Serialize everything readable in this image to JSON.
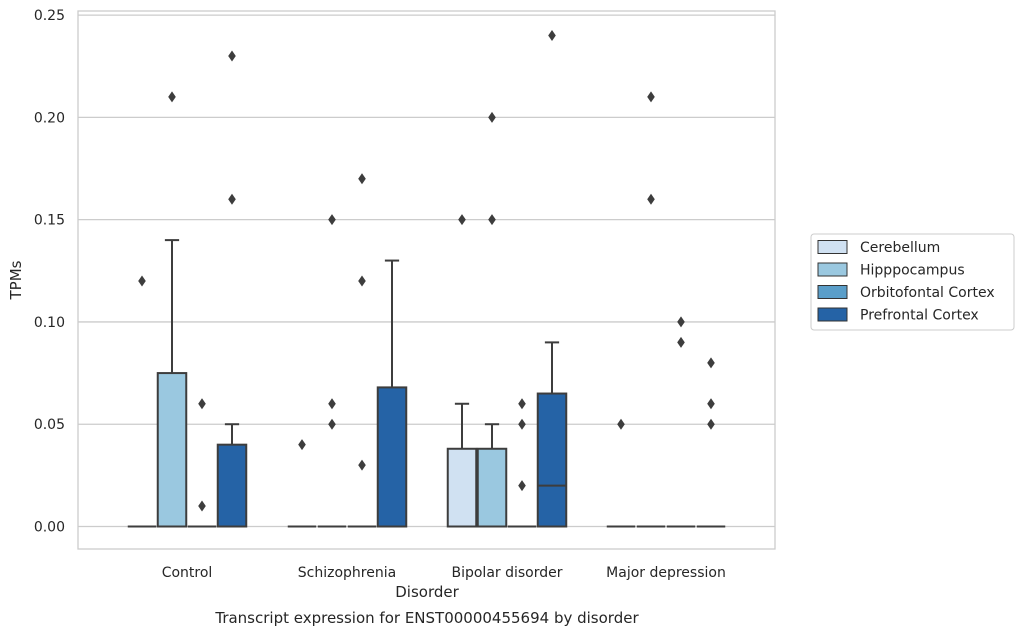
{
  "chart_data": {
    "type": "boxplot",
    "title": "Transcript expression for ENST00000455694 by disorder",
    "xlabel": "Disorder",
    "ylabel": "TPMs",
    "categories": [
      "Control",
      "Schizophrenia",
      "Bipolar disorder",
      "Major depression"
    ],
    "ylim": [
      -0.011,
      0.252
    ],
    "yticks": [
      0.0,
      0.05,
      0.1,
      0.15,
      0.2,
      0.25
    ],
    "ytick_labels": [
      "0.00",
      "0.05",
      "0.10",
      "0.15",
      "0.20",
      "0.25"
    ],
    "grid": "horizontal",
    "legend_position": "right",
    "series": [
      {
        "name": "Cerebellum",
        "color": "#d0e1f2",
        "boxes": [
          {
            "category": "Control",
            "q1": 0,
            "median": 0,
            "q3": 0,
            "whislo": 0,
            "whishi": 0,
            "fliers": [
              0.12
            ]
          },
          {
            "category": "Schizophrenia",
            "q1": 0,
            "median": 0,
            "q3": 0,
            "whislo": 0,
            "whishi": 0,
            "fliers": [
              0.04
            ]
          },
          {
            "category": "Bipolar disorder",
            "q1": 0,
            "median": 0,
            "q3": 0.038,
            "whislo": 0,
            "whishi": 0.06,
            "fliers": [
              0.15
            ]
          },
          {
            "category": "Major depression",
            "q1": 0,
            "median": 0,
            "q3": 0,
            "whislo": 0,
            "whishi": 0,
            "fliers": [
              0.05
            ]
          }
        ]
      },
      {
        "name": "Hipppocampus",
        "color": "#9ac8e0",
        "boxes": [
          {
            "category": "Control",
            "q1": 0,
            "median": 0,
            "q3": 0.075,
            "whislo": 0,
            "whishi": 0.14,
            "fliers": [
              0.21
            ]
          },
          {
            "category": "Schizophrenia",
            "q1": 0,
            "median": 0,
            "q3": 0,
            "whislo": 0,
            "whishi": 0,
            "fliers": [
              0.15,
              0.06,
              0.05
            ]
          },
          {
            "category": "Bipolar disorder",
            "q1": 0,
            "median": 0,
            "q3": 0.038,
            "whislo": 0,
            "whishi": 0.05,
            "fliers": [
              0.2,
              0.15
            ]
          },
          {
            "category": "Major depression",
            "q1": 0,
            "median": 0,
            "q3": 0,
            "whislo": 0,
            "whishi": 0,
            "fliers": [
              0.21,
              0.16
            ]
          }
        ]
      },
      {
        "name": "Orbitofontal Cortex",
        "color": "#5a9ec9",
        "boxes": [
          {
            "category": "Control",
            "q1": 0,
            "median": 0,
            "q3": 0,
            "whislo": 0,
            "whishi": 0,
            "fliers": [
              0.06,
              0.01
            ]
          },
          {
            "category": "Schizophrenia",
            "q1": 0,
            "median": 0,
            "q3": 0,
            "whislo": 0,
            "whishi": 0,
            "fliers": [
              0.17,
              0.12,
              0.03
            ]
          },
          {
            "category": "Bipolar disorder",
            "q1": 0,
            "median": 0,
            "q3": 0,
            "whislo": 0,
            "whishi": 0,
            "fliers": [
              0.06,
              0.05,
              0.02
            ]
          },
          {
            "category": "Major depression",
            "q1": 0,
            "median": 0,
            "q3": 0,
            "whislo": 0,
            "whishi": 0,
            "fliers": [
              0.1,
              0.09
            ]
          }
        ]
      },
      {
        "name": "Prefrontal Cortex",
        "color": "#2563a6",
        "boxes": [
          {
            "category": "Control",
            "q1": 0,
            "median": 0,
            "q3": 0.04,
            "whislo": 0,
            "whishi": 0.05,
            "fliers": [
              0.23,
              0.16
            ]
          },
          {
            "category": "Schizophrenia",
            "q1": 0,
            "median": 0,
            "q3": 0.068,
            "whislo": 0,
            "whishi": 0.13,
            "fliers": []
          },
          {
            "category": "Bipolar disorder",
            "q1": 0,
            "median": 0.02,
            "q3": 0.065,
            "whislo": 0,
            "whishi": 0.09,
            "fliers": [
              0.24
            ]
          },
          {
            "category": "Major depression",
            "q1": 0,
            "median": 0,
            "q3": 0,
            "whislo": 0,
            "whishi": 0,
            "fliers": [
              0.08,
              0.06,
              0.05
            ]
          }
        ]
      }
    ]
  }
}
